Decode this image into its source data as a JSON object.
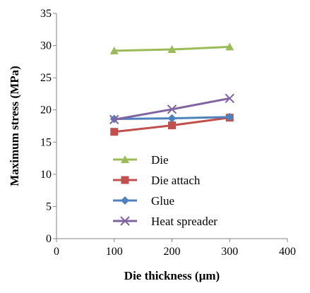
{
  "chart_data": {
    "type": "line",
    "title": "",
    "xlabel": "Die thickness (µm)",
    "ylabel": "Maximum stress (MPa)",
    "xlim": [
      0,
      400
    ],
    "ylim": [
      0,
      35
    ],
    "xticks": [
      "0",
      "100",
      "200",
      "300",
      "400"
    ],
    "yticks": [
      "0",
      "5",
      "10",
      "15",
      "20",
      "25",
      "30",
      "35"
    ],
    "grid": false,
    "legend_position": "lower-center",
    "x": [
      100,
      200,
      300
    ],
    "series": [
      {
        "name": "Die",
        "values": [
          29.2,
          29.4,
          29.8
        ],
        "color": "#9BBB59",
        "marker": "triangle"
      },
      {
        "name": "Die attach",
        "values": [
          16.6,
          17.6,
          18.8
        ],
        "color": "#C0504D",
        "marker": "square"
      },
      {
        "name": "Glue",
        "values": [
          18.6,
          18.7,
          18.9
        ],
        "color": "#4F81BD",
        "marker": "diamond"
      },
      {
        "name": "Heat spreader",
        "values": [
          18.5,
          20.1,
          21.8
        ],
        "color": "#8064A2",
        "marker": "x"
      }
    ]
  }
}
